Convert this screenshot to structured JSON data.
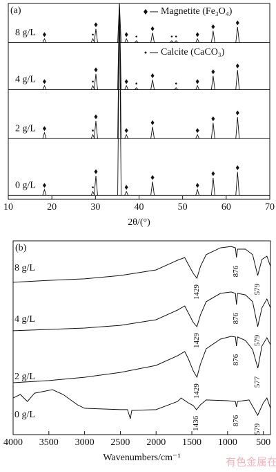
{
  "chart_data": [
    {
      "type": "stick",
      "panel": "(a)",
      "xlabel": "2θ/(°)",
      "xlim": [
        10,
        70
      ],
      "xticks": [
        10,
        20,
        30,
        40,
        50,
        60,
        70
      ],
      "ylim": [
        0,
        100
      ],
      "legend": [
        {
          "name": "Magnetite (Fe₃O₄)",
          "marker": "diamond"
        },
        {
          "name": "Calcite (CaCO₃)",
          "marker": "dot"
        }
      ],
      "series": [
        {
          "name": "8 g/L",
          "baseline": 80,
          "magnetite": {
            "x": [
              18.3,
              30.1,
              35.5,
              37.1,
              43.1,
              53.4,
              57.0,
              62.6
            ],
            "top": [
              82,
              87,
              100,
              82,
              85,
              82,
              86,
              88
            ]
          },
          "calcite": {
            "x": [
              29.4,
              39.4,
              47.5,
              48.5
            ],
            "top": [
              82,
              81,
              81,
              81
            ]
          }
        },
        {
          "name": "4 g/L",
          "baseline": 56,
          "magnetite": {
            "x": [
              18.3,
              30.1,
              35.5,
              37.1,
              43.1,
              53.4,
              57.0,
              62.6
            ],
            "top": [
              58,
              64,
              100,
              58,
              61,
              58,
              63,
              66
            ]
          },
          "calcite": {
            "x": [
              29.4,
              39.4,
              48.5
            ],
            "top": [
              58,
              57,
              57
            ]
          }
        },
        {
          "name": "2 g/L",
          "baseline": 31,
          "magnetite": {
            "x": [
              18.3,
              30.1,
              35.5,
              37.1,
              43.1,
              53.4,
              57.0,
              62.6
            ],
            "top": [
              34,
              40,
              100,
              33,
              37,
              33,
              39,
              42
            ]
          },
          "calcite": {
            "x": [
              29.4
            ],
            "top": [
              33
            ]
          }
        },
        {
          "name": "0 g/L",
          "baseline": 2,
          "magnetite": {
            "x": [
              18.3,
              30.1,
              35.5,
              37.1,
              43.1,
              53.4,
              57.0,
              62.6
            ],
            "top": [
              5,
              12,
              100,
              4,
              9,
              5,
              11,
              14
            ]
          },
          "calcite": {
            "x": [
              29.4
            ],
            "top": [
              4
            ]
          }
        }
      ]
    },
    {
      "type": "line",
      "panel": "(b)",
      "xlabel": "Wavenumbers/cm⁻¹",
      "xlim": [
        4000,
        400
      ],
      "xticks": [
        4000,
        3500,
        3000,
        2500,
        2000,
        1500,
        1000,
        500
      ],
      "ylim": [
        0,
        100
      ],
      "series": [
        {
          "name": "8 g/L",
          "bands": [
            1429,
            876,
            579
          ],
          "x": [
            4000,
            3500,
            3000,
            2500,
            2000,
            1700,
            1600,
            1550,
            1480,
            1429,
            1380,
            1300,
            1100,
            950,
            890,
            876,
            860,
            750,
            650,
            579,
            520,
            450,
            400
          ],
          "values": [
            78.6,
            79.6,
            80.4,
            82.1,
            85,
            90,
            91.4,
            87.9,
            83.2,
            80.7,
            86.8,
            92.9,
            96.4,
            97.1,
            96.4,
            91.4,
            95.7,
            95.7,
            92.9,
            82.1,
            90.4,
            92.1,
            86.8
          ]
        },
        {
          "name": "4 g/L",
          "bands": [
            1429,
            876,
            579
          ],
          "x": [
            4000,
            3500,
            3000,
            2500,
            2000,
            1700,
            1600,
            1550,
            1480,
            1429,
            1380,
            1300,
            1100,
            950,
            890,
            876,
            860,
            750,
            650,
            579,
            520,
            450,
            400
          ],
          "values": [
            53.6,
            54.3,
            55,
            56.4,
            59.3,
            64.3,
            66.4,
            62.9,
            57.9,
            55.7,
            61.8,
            68.6,
            72.9,
            73.6,
            72.9,
            67.1,
            72.9,
            72.1,
            68.6,
            55.7,
            65.4,
            70,
            65.4
          ]
        },
        {
          "name": "2 g/L",
          "bands": [
            1429,
            876,
            577
          ],
          "x": [
            4000,
            3500,
            3000,
            2500,
            2000,
            1700,
            1600,
            1550,
            1480,
            1429,
            1380,
            1300,
            1100,
            950,
            890,
            876,
            860,
            750,
            650,
            577,
            520,
            450,
            400
          ],
          "values": [
            26.8,
            27.9,
            29.6,
            32.1,
            35.7,
            40.7,
            42.9,
            39.3,
            32.9,
            29.6,
            36.4,
            44.3,
            49.3,
            50.7,
            50.4,
            45.7,
            50.4,
            48.6,
            43.9,
            34.3,
            45.7,
            50,
            46.4
          ]
        },
        {
          "name": "0 g/L",
          "bands": [
            1436,
            876,
            579
          ],
          "x": [
            4000,
            3900,
            3800,
            3700,
            3600,
            3450,
            3300,
            3100,
            3000,
            2500,
            2400,
            2360,
            2340,
            2000,
            1700,
            1650,
            1550,
            1480,
            1436,
            1380,
            1300,
            1000,
            890,
            876,
            860,
            700,
            579,
            500,
            450,
            400
          ],
          "values": [
            18.9,
            20.7,
            17.1,
            21.4,
            22.1,
            23.2,
            20.7,
            15.4,
            13.6,
            12.9,
            12.9,
            8.2,
            12.5,
            12.9,
            17.1,
            18.9,
            16.4,
            15,
            12.9,
            15.4,
            17.9,
            17.5,
            17.1,
            14.3,
            17.1,
            17.9,
            10,
            16.4,
            18.9,
            13.6
          ]
        }
      ]
    }
  ],
  "watermark": "有色金属在线"
}
